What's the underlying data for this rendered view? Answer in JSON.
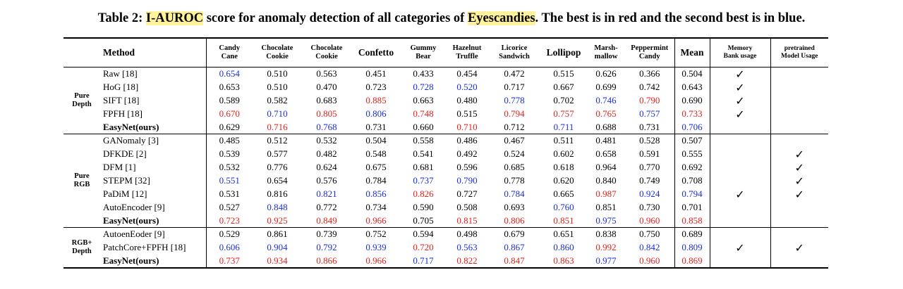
{
  "caption": {
    "prefix": "Table 2: ",
    "highlight1": "I-AUROC",
    "middle": " score for anomaly detection of all categories of ",
    "highlight2": "Eyescandies",
    "suffix": ". The best is in red and the second best is in blue."
  },
  "headers": {
    "method": "Method",
    "candy_cane": [
      "Candy",
      "Cane"
    ],
    "chocolate_cookie": [
      "Chocolate",
      "Cookie"
    ],
    "chocolate_cookie2": [
      "Chocolate",
      "Cookie"
    ],
    "confetto": "Confetto",
    "gummy_bear": [
      "Gummy",
      "Bear"
    ],
    "hazelnut_truffle": [
      "Hazelnut",
      "Truffle"
    ],
    "licorice_sandwich": [
      "Licorice",
      "Sandwich"
    ],
    "lollipop": "Lollipop",
    "marshmallow": [
      "Marsh-",
      "mallow"
    ],
    "peppermint_candy": [
      "Peppermint",
      "Candy"
    ],
    "mean": "Mean",
    "memory_bank": [
      "Memory",
      "Bank usage"
    ],
    "pretrained": [
      "pretrained",
      "Model Usage"
    ]
  },
  "groups": [
    {
      "label": [
        "Pure",
        "Depth"
      ]
    },
    {
      "label": [
        "Pure",
        "RGB"
      ]
    },
    {
      "label": [
        "RGB+",
        "Depth"
      ]
    }
  ],
  "rows": [
    {
      "group": 0,
      "method": "Raw [18]",
      "bold": false,
      "values": [
        "0.654",
        "0.510",
        "0.563",
        "0.451",
        "0.433",
        "0.454",
        "0.472",
        "0.515",
        "0.626",
        "0.366",
        "0.504"
      ],
      "colors": [
        "b",
        "",
        "",
        "",
        "",
        "",
        "",
        "",
        "",
        "",
        ""
      ],
      "memory": "✓",
      "pretrained": ""
    },
    {
      "group": 0,
      "method": "HoG [18]",
      "bold": false,
      "values": [
        "0.653",
        "0.510",
        "0.470",
        "0.723",
        "0.728",
        "0.520",
        "0.717",
        "0.667",
        "0.699",
        "0.742",
        "0.643"
      ],
      "colors": [
        "",
        "",
        "",
        "",
        "b",
        "b",
        "",
        "",
        "",
        "",
        ""
      ],
      "memory": "✓",
      "pretrained": ""
    },
    {
      "group": 0,
      "method": "SIFT [18]",
      "bold": false,
      "values": [
        "0.589",
        "0.582",
        "0.683",
        "0.885",
        "0.663",
        "0.480",
        "0.778",
        "0.702",
        "0.746",
        "0.790",
        "0.690"
      ],
      "colors": [
        "",
        "",
        "",
        "r",
        "",
        "",
        "b",
        "",
        "b",
        "r",
        ""
      ],
      "memory": "✓",
      "pretrained": ""
    },
    {
      "group": 0,
      "method": "FPFH [18]",
      "bold": false,
      "values": [
        "0.670",
        "0.710",
        "0.805",
        "0.806",
        "0.748",
        "0.515",
        "0.794",
        "0.757",
        "0.765",
        "0.757",
        "0.733"
      ],
      "colors": [
        "r",
        "b",
        "r",
        "b",
        "r",
        "",
        "r",
        "r",
        "r",
        "b",
        "r"
      ],
      "memory": "✓",
      "pretrained": ""
    },
    {
      "group": 0,
      "method": "EasyNet(ours)",
      "bold": true,
      "values": [
        "0.629",
        "0.716",
        "0.768",
        "0.731",
        "0.660",
        "0.710",
        "0.712",
        "0.711",
        "0.688",
        "0.731",
        "0.706"
      ],
      "colors": [
        "",
        "r",
        "b",
        "",
        "",
        "r",
        "",
        "b",
        "",
        "",
        "b"
      ],
      "memory": "",
      "pretrained": ""
    },
    {
      "group": 1,
      "method": "GANomaly [3]",
      "bold": false,
      "values": [
        "0.485",
        "0.512",
        "0.532",
        "0.504",
        "0.558",
        "0.486",
        "0.467",
        "0.511",
        "0.481",
        "0.528",
        "0.507"
      ],
      "colors": [
        "",
        "",
        "",
        "",
        "",
        "",
        "",
        "",
        "",
        "",
        ""
      ],
      "memory": "",
      "pretrained": ""
    },
    {
      "group": 1,
      "method": "DFKDE [2]",
      "bold": false,
      "values": [
        "0.539",
        "0.577",
        "0.482",
        "0.548",
        "0.541",
        "0.492",
        "0.524",
        "0.602",
        "0.658",
        "0.591",
        "0.555"
      ],
      "colors": [
        "",
        "",
        "",
        "",
        "",
        "",
        "",
        "",
        "",
        "",
        ""
      ],
      "memory": "",
      "pretrained": "✓"
    },
    {
      "group": 1,
      "method": "DFM [1]",
      "bold": false,
      "values": [
        "0.532",
        "0.776",
        "0.624",
        "0.675",
        "0.681",
        "0.596",
        "0.685",
        "0.618",
        "0.964",
        "0.770",
        "0.692"
      ],
      "colors": [
        "",
        "",
        "",
        "",
        "",
        "",
        "",
        "",
        "",
        "",
        ""
      ],
      "memory": "",
      "pretrained": "✓"
    },
    {
      "group": 1,
      "method": "STEPM [32]",
      "bold": false,
      "values": [
        "0.551",
        "0.654",
        "0.576",
        "0.784",
        "0.737",
        "0.790",
        "0.778",
        "0.620",
        "0.840",
        "0.749",
        "0.708"
      ],
      "colors": [
        "b",
        "",
        "",
        "",
        "b",
        "b",
        "",
        "",
        "",
        "",
        ""
      ],
      "memory": "",
      "pretrained": "✓"
    },
    {
      "group": 1,
      "method": "PaDiM [12]",
      "bold": false,
      "values": [
        "0.531",
        "0.816",
        "0.821",
        "0.856",
        "0.826",
        "0.727",
        "0.784",
        "0.665",
        "0.987",
        "0.924",
        "0.794"
      ],
      "colors": [
        "",
        "",
        "b",
        "b",
        "r",
        "",
        "b",
        "",
        "r",
        "b",
        "b"
      ],
      "memory": "✓",
      "pretrained": "✓"
    },
    {
      "group": 1,
      "method": "AutoEncoder [9]",
      "bold": false,
      "values": [
        "0.527",
        "0.848",
        "0.772",
        "0.734",
        "0.590",
        "0.508",
        "0.693",
        "0.760",
        "0.851",
        "0.730",
        "0.701"
      ],
      "colors": [
        "",
        "b",
        "",
        "",
        "",
        "",
        "",
        "b",
        "",
        "",
        ""
      ],
      "memory": "",
      "pretrained": ""
    },
    {
      "group": 1,
      "method": "EasyNet(ours)",
      "bold": true,
      "values": [
        "0.723",
        "0.925",
        "0.849",
        "0.966",
        "0.705",
        "0.815",
        "0.806",
        "0.851",
        "0.975",
        "0.960",
        "0.858"
      ],
      "colors": [
        "r",
        "r",
        "r",
        "r",
        "",
        "r",
        "r",
        "r",
        "b",
        "r",
        "r"
      ],
      "memory": "",
      "pretrained": ""
    },
    {
      "group": 2,
      "method": "AutoenEoder [9]",
      "bold": false,
      "values": [
        "0.529",
        "0.861",
        "0.739",
        "0.752",
        "0.594",
        "0.498",
        "0.679",
        "0.651",
        "0.838",
        "0.750",
        "0.689"
      ],
      "colors": [
        "",
        "",
        "",
        "",
        "",
        "",
        "",
        "",
        "",
        "",
        ""
      ],
      "memory": "",
      "pretrained": ""
    },
    {
      "group": 2,
      "method": "PatchCore+FPFH [18]",
      "bold": false,
      "values": [
        "0.606",
        "0.904",
        "0.792",
        "0.939",
        "0.720",
        "0.563",
        "0.867",
        "0.860",
        "0.992",
        "0.842",
        "0.809"
      ],
      "colors": [
        "b",
        "b",
        "b",
        "b",
        "r",
        "b",
        "b",
        "b",
        "r",
        "b",
        "b"
      ],
      "memory": "✓",
      "pretrained": "✓"
    },
    {
      "group": 2,
      "method": "EasyNet(ours)",
      "bold": true,
      "values": [
        "0.737",
        "0.934",
        "0.866",
        "0.966",
        "0.717",
        "0.822",
        "0.847",
        "0.863",
        "0.977",
        "0.960",
        "0.869"
      ],
      "colors": [
        "r",
        "r",
        "r",
        "r",
        "b",
        "r",
        "r",
        "r",
        "b",
        "r",
        "r"
      ],
      "memory": "",
      "pretrained": ""
    }
  ],
  "colors": {
    "red": "#e8201a",
    "blue": "#1a2ee0",
    "highlight": "#fff29a"
  }
}
